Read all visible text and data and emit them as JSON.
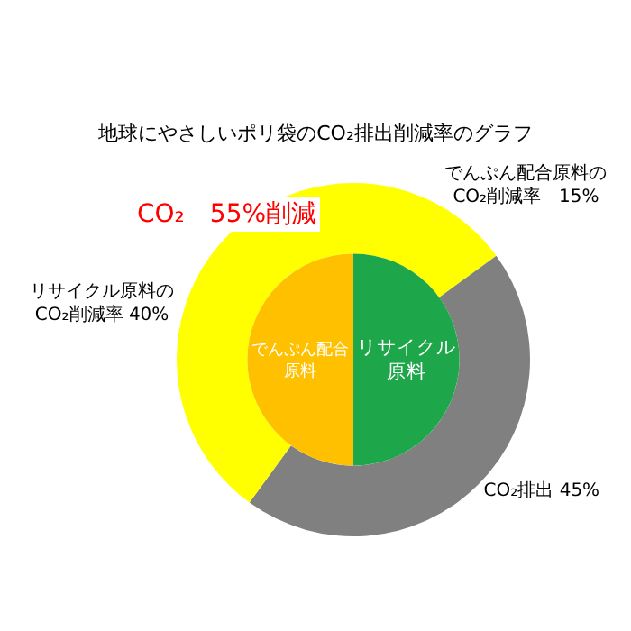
{
  "chart_data": [
    {
      "type": "donut",
      "title": "地球にやさしいポリ袋のCO₂排出削減率のグラフ",
      "annotations": [
        "CO₂　55%削減"
      ],
      "categories": [
        "でんぷん配合原料の\nCO₂削減率　15%",
        "CO₂排出 45%",
        "リサイクル原料の\nCO₂削減率 40%"
      ],
      "values": [
        15,
        45,
        40
      ],
      "colors": [
        "#ffff00",
        "#808080",
        "#ffff00"
      ]
    },
    {
      "type": "pie",
      "categories": [
        "リサイクル原料",
        "でんぷん配合原料"
      ],
      "values": [
        50,
        50
      ],
      "colors": [
        "#1ea64a",
        "#ffc000"
      ]
    }
  ]
}
